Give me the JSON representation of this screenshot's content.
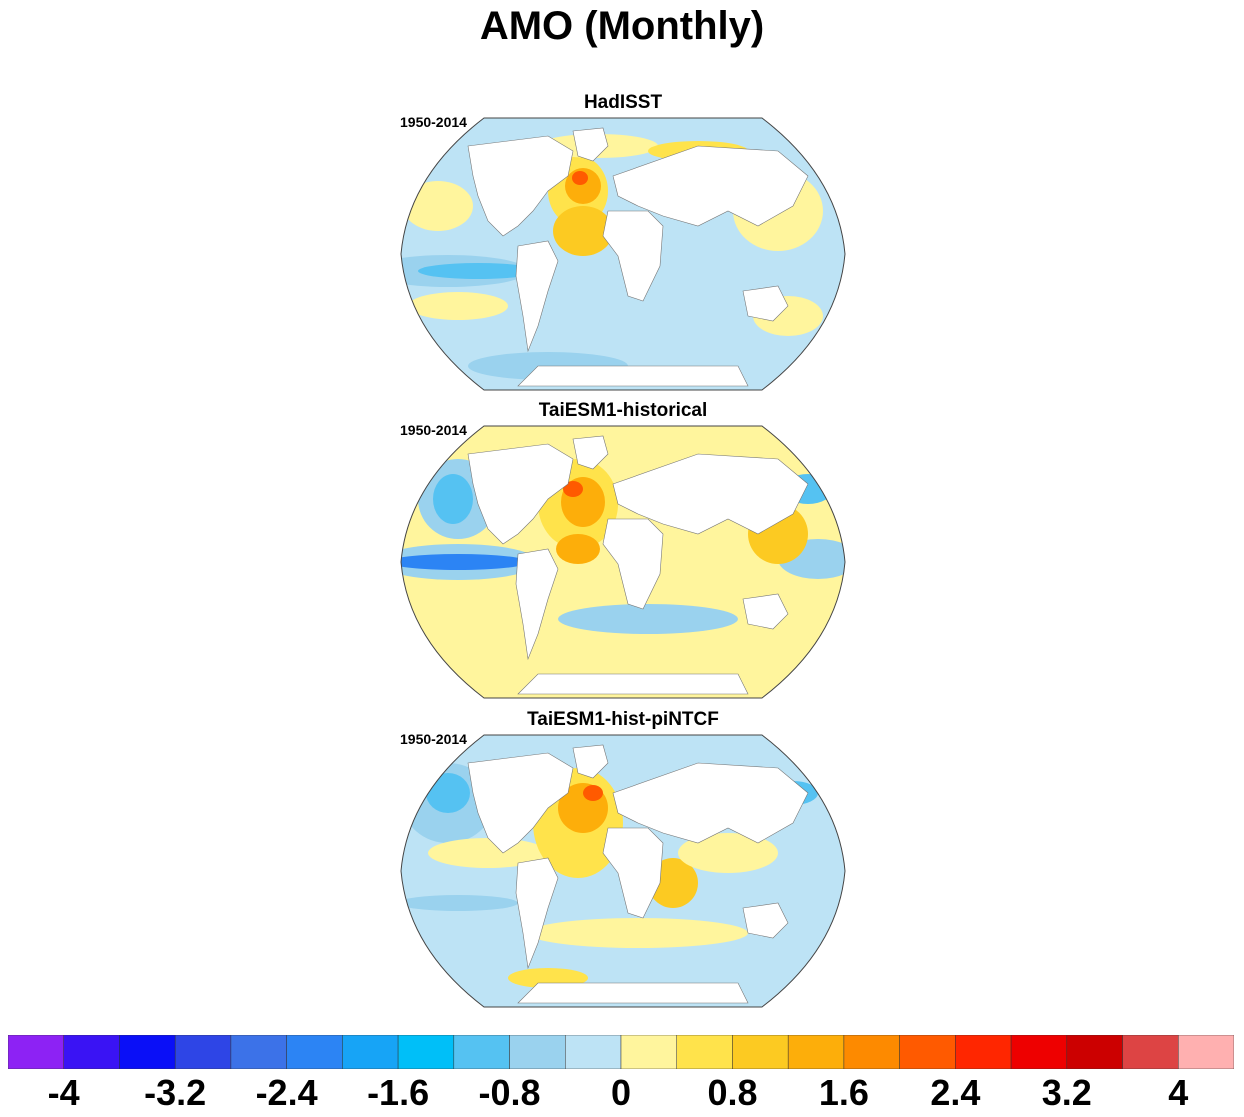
{
  "title": "AMO (Monthly)",
  "panels": [
    {
      "title": "HadISST",
      "period": "1950-2014"
    },
    {
      "title": "TaiESM1-historical",
      "period": "1950-2014"
    },
    {
      "title": "TaiESM1-hist-piNTCF",
      "period": "1950-2014"
    }
  ],
  "colorbar": {
    "colors": [
      "#8d22f4",
      "#3a13f4",
      "#0a0ff7",
      "#2e45e6",
      "#3c72e8",
      "#2c84f4",
      "#17a4f6",
      "#00bff8",
      "#55c2f2",
      "#9ad2ee",
      "#bde3f5",
      "#fff59d",
      "#ffe34b",
      "#fcca22",
      "#fdae0a",
      "#fd8a00",
      "#ff5a00",
      "#ff2600",
      "#ee0000",
      "#cc0000",
      "#dd4444",
      "#ffb0b0"
    ],
    "tick_labels": [
      "-4",
      "-3.2",
      "-2.4",
      "-1.6",
      "-0.8",
      "0",
      "0.8",
      "1.6",
      "2.4",
      "3.2",
      "4"
    ]
  }
}
